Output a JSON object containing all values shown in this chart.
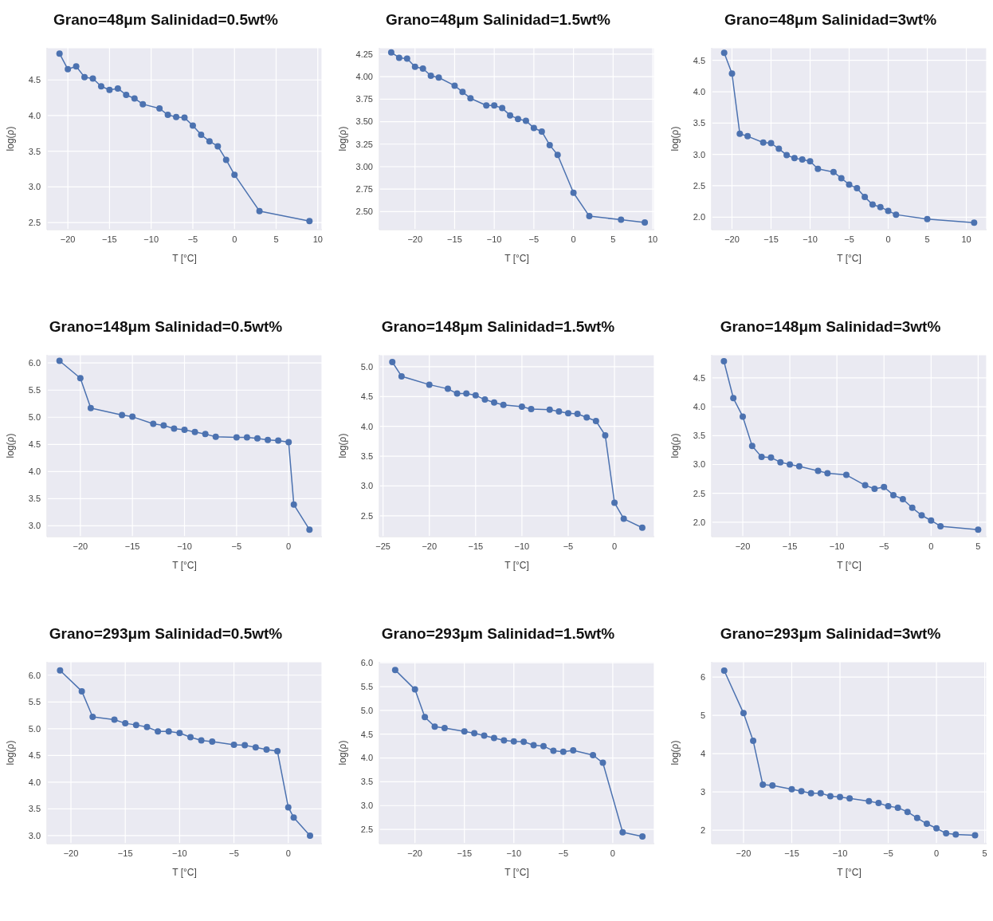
{
  "chart_data": [
    {
      "type": "line",
      "title": "Grano=48μm  Salinidad=0.5wt%",
      "xlabel": "T [°C]",
      "ylabel": "log(ρ)",
      "grid": true,
      "marker": "circle",
      "xlim": [
        -22.5,
        10.5
      ],
      "ylim": [
        2.4,
        4.95
      ],
      "xticks": [
        -20,
        -15,
        -10,
        -5,
        0,
        5,
        10
      ],
      "yticks": [
        2.5,
        {
          "value": 3,
          "label": "3.0"
        },
        3.5,
        {
          "value": 4,
          "label": "4.0"
        },
        4.5
      ],
      "x": [
        -21,
        -20,
        -19,
        -18,
        -17,
        -16,
        -15,
        -14,
        -13,
        -12,
        -11,
        -9,
        -8,
        -7,
        -6,
        -5,
        -4,
        -3,
        -2,
        -1,
        0,
        3,
        9
      ],
      "series": [
        {
          "color": "#4c72b0",
          "values": [
            4.87,
            4.65,
            4.69,
            4.54,
            4.52,
            4.41,
            4.36,
            4.38,
            4.29,
            4.24,
            4.16,
            4.1,
            4.01,
            3.98,
            3.97,
            3.86,
            3.73,
            3.64,
            3.57,
            3.38,
            3.17,
            2.66,
            2.52
          ]
        }
      ]
    },
    {
      "type": "line",
      "title": "Grano=48μm  Salinidad=1.5wt%",
      "xlabel": "T [°C]",
      "ylabel": "log(ρ)",
      "grid": true,
      "marker": "circle",
      "xlim": [
        -24.5,
        10.2
      ],
      "ylim": [
        2.3,
        4.32
      ],
      "xticks": [
        -20,
        -15,
        -10,
        -5,
        0,
        5,
        10
      ],
      "yticks": [
        {
          "value": 2.5,
          "label": "2.50"
        },
        2.75,
        {
          "value": 3,
          "label": "3.00"
        },
        3.25,
        {
          "value": 3.5,
          "label": "3.50"
        },
        3.75,
        {
          "value": 4,
          "label": "4.00"
        },
        4.25
      ],
      "x": [
        -23,
        -22,
        -21,
        -20,
        -19,
        -18,
        -17,
        -15,
        -14,
        -13,
        -11,
        -10,
        -9,
        -8,
        -7,
        -6,
        -5,
        -4,
        -3,
        -2,
        0,
        2,
        6,
        9
      ],
      "series": [
        {
          "color": "#4c72b0",
          "values": [
            4.27,
            4.21,
            4.2,
            4.11,
            4.09,
            4.01,
            3.99,
            3.9,
            3.83,
            3.76,
            3.68,
            3.68,
            3.65,
            3.57,
            3.53,
            3.51,
            3.43,
            3.39,
            3.24,
            3.13,
            2.71,
            2.45,
            2.41,
            2.38
          ]
        }
      ]
    },
    {
      "type": "line",
      "title": "Grano=48μm  Salinidad=3wt%",
      "xlabel": "T [°C]",
      "ylabel": "log(ρ)",
      "grid": true,
      "marker": "circle",
      "xlim": [
        -22.6,
        12.6
      ],
      "ylim": [
        1.8,
        4.7
      ],
      "xticks": [
        -20,
        -15,
        -10,
        -5,
        0,
        5,
        10
      ],
      "yticks": [
        {
          "value": 2,
          "label": "2.0"
        },
        2.5,
        {
          "value": 3,
          "label": "3.0"
        },
        3.5,
        {
          "value": 4,
          "label": "4.0"
        },
        4.5
      ],
      "x": [
        -21,
        -20,
        -19,
        -18,
        -16,
        -15,
        -14,
        -13,
        -12,
        -11,
        -10,
        -9,
        -7,
        -6,
        -5,
        -4,
        -3,
        -2,
        -1,
        0,
        1,
        5,
        11
      ],
      "series": [
        {
          "color": "#4c72b0",
          "values": [
            4.62,
            4.29,
            3.33,
            3.29,
            3.19,
            3.18,
            3.09,
            2.99,
            2.94,
            2.92,
            2.89,
            2.77,
            2.72,
            2.62,
            2.52,
            2.46,
            2.32,
            2.2,
            2.16,
            2.1,
            2.04,
            1.97,
            1.91
          ]
        }
      ]
    },
    {
      "type": "line",
      "title": "Grano=148μm  Salinidad=0.5wt%",
      "xlabel": "T [°C]",
      "ylabel": "log(ρ)",
      "grid": true,
      "marker": "circle",
      "xlim": [
        -23.2,
        3.2
      ],
      "ylim": [
        2.8,
        6.15
      ],
      "xticks": [
        -20,
        -15,
        -10,
        -5,
        0
      ],
      "yticks": [
        {
          "value": 3,
          "label": "3.0"
        },
        3.5,
        {
          "value": 4,
          "label": "4.0"
        },
        4.5,
        {
          "value": 5,
          "label": "5.0"
        },
        5.5,
        {
          "value": 6,
          "label": "6.0"
        }
      ],
      "x": [
        -22,
        -20,
        -19,
        -16,
        -15,
        -13,
        -12,
        -11,
        -10,
        -9,
        -8,
        -7,
        -5,
        -4,
        -3,
        -2,
        -1,
        0,
        0.5,
        2
      ],
      "series": [
        {
          "color": "#4c72b0",
          "values": [
            6.04,
            5.72,
            5.17,
            5.04,
            5.01,
            4.88,
            4.85,
            4.79,
            4.77,
            4.73,
            4.69,
            4.64,
            4.63,
            4.63,
            4.61,
            4.58,
            4.57,
            4.54,
            3.39,
            2.93
          ]
        }
      ]
    },
    {
      "type": "line",
      "title": "Grano=148μm  Salinidad=1.5wt%",
      "xlabel": "T [°C]",
      "ylabel": "log(ρ)",
      "grid": true,
      "marker": "circle",
      "xlim": [
        -25.4,
        4.3
      ],
      "ylim": [
        2.15,
        5.2
      ],
      "xticks": [
        -25,
        -20,
        -15,
        -10,
        -5,
        0
      ],
      "yticks": [
        2.5,
        {
          "value": 3,
          "label": "3.0"
        },
        3.5,
        {
          "value": 4,
          "label": "4.0"
        },
        4.5,
        {
          "value": 5,
          "label": "5.0"
        }
      ],
      "x": [
        -24,
        -23,
        -20,
        -18,
        -17,
        -16,
        -15,
        -14,
        -13,
        -12,
        -10,
        -9,
        -7,
        -6,
        -5,
        -4,
        -3,
        -2,
        -1,
        0,
        1,
        3
      ],
      "series": [
        {
          "color": "#4c72b0",
          "values": [
            5.08,
            4.84,
            4.7,
            4.63,
            4.55,
            4.55,
            4.52,
            4.45,
            4.4,
            4.36,
            4.33,
            4.29,
            4.28,
            4.25,
            4.22,
            4.21,
            4.15,
            4.09,
            3.85,
            2.72,
            2.45,
            2.3
          ]
        }
      ]
    },
    {
      "type": "line",
      "title": "Grano=148μm  Salinidad=3wt%",
      "xlabel": "T [°C]",
      "ylabel": "log(ρ)",
      "grid": true,
      "marker": "circle",
      "xlim": [
        -23.3,
        5.9
      ],
      "ylim": [
        1.75,
        4.9
      ],
      "xticks": [
        -20,
        -15,
        -10,
        -5,
        0,
        5
      ],
      "yticks": [
        {
          "value": 2,
          "label": "2.0"
        },
        2.5,
        {
          "value": 3,
          "label": "3.0"
        },
        3.5,
        {
          "value": 4,
          "label": "4.0"
        },
        4.5
      ],
      "x": [
        -22,
        -21,
        -20,
        -19,
        -18,
        -17,
        -16,
        -15,
        -14,
        -12,
        -11,
        -9,
        -7,
        -6,
        -5,
        -4,
        -3,
        -2,
        -1,
        0,
        1,
        5
      ],
      "series": [
        {
          "color": "#4c72b0",
          "values": [
            4.79,
            4.15,
            3.83,
            3.32,
            3.13,
            3.12,
            3.04,
            3.0,
            2.97,
            2.89,
            2.85,
            2.82,
            2.64,
            2.58,
            2.61,
            2.47,
            2.4,
            2.25,
            2.12,
            2.03,
            1.93,
            1.87
          ]
        }
      ]
    },
    {
      "type": "line",
      "title": "Grano=293μm  Salinidad=0.5wt%",
      "xlabel": "T [°C]",
      "ylabel": "log(ρ)",
      "grid": true,
      "marker": "circle",
      "xlim": [
        -22.2,
        3.1
      ],
      "ylim": [
        2.85,
        6.25
      ],
      "xticks": [
        -20,
        -15,
        -10,
        -5,
        0
      ],
      "yticks": [
        {
          "value": 3,
          "label": "3.0"
        },
        3.5,
        {
          "value": 4,
          "label": "4.0"
        },
        4.5,
        {
          "value": 5,
          "label": "5.0"
        },
        5.5,
        {
          "value": 6,
          "label": "6.0"
        }
      ],
      "x": [
        -21,
        -19,
        -18,
        -16,
        -15,
        -14,
        -13,
        -12,
        -11,
        -10,
        -9,
        -8,
        -7,
        -5,
        -4,
        -3,
        -2,
        -1,
        0,
        0.5,
        2
      ],
      "series": [
        {
          "color": "#4c72b0",
          "values": [
            6.09,
            5.7,
            5.22,
            5.17,
            5.1,
            5.07,
            5.03,
            4.95,
            4.95,
            4.92,
            4.84,
            4.78,
            4.76,
            4.7,
            4.69,
            4.65,
            4.61,
            4.58,
            3.53,
            3.34,
            3.0
          ]
        }
      ]
    },
    {
      "type": "line",
      "title": "Grano=293μm  Salinidad=1.5wt%",
      "xlabel": "T [°C]",
      "ylabel": "log(ρ)",
      "grid": true,
      "marker": "circle",
      "xlim": [
        -23.6,
        4.2
      ],
      "ylim": [
        2.2,
        6.02
      ],
      "xticks": [
        -20,
        -15,
        -10,
        -5,
        0
      ],
      "yticks": [
        2.5,
        {
          "value": 3,
          "label": "3.0"
        },
        3.5,
        {
          "value": 4,
          "label": "4.0"
        },
        4.5,
        {
          "value": 5,
          "label": "5.0"
        },
        5.5,
        {
          "value": 6,
          "label": "6.0"
        }
      ],
      "x": [
        -22,
        -20,
        -19,
        -18,
        -17,
        -15,
        -14,
        -13,
        -12,
        -11,
        -10,
        -9,
        -8,
        -7,
        -6,
        -5,
        -4,
        -2,
        -1,
        1,
        3
      ],
      "series": [
        {
          "color": "#4c72b0",
          "values": [
            5.85,
            5.44,
            4.86,
            4.66,
            4.63,
            4.56,
            4.52,
            4.47,
            4.42,
            4.37,
            4.35,
            4.34,
            4.27,
            4.25,
            4.15,
            4.13,
            4.16,
            4.06,
            3.9,
            2.44,
            2.35
          ]
        }
      ]
    },
    {
      "type": "line",
      "title": "Grano=293μm  Salinidad=3wt%",
      "xlabel": "T [°C]",
      "ylabel": "log(ρ)",
      "grid": true,
      "marker": "circle",
      "xlim": [
        -23.3,
        5.2
      ],
      "ylim": [
        1.65,
        6.4
      ],
      "xticks": [
        -20,
        -15,
        -10,
        -5,
        0,
        5
      ],
      "yticks": [
        2,
        3,
        4,
        5,
        6
      ],
      "x": [
        -22,
        -20,
        -19,
        -18,
        -17,
        -15,
        -14,
        -13,
        -12,
        -11,
        -10,
        -9,
        -7,
        -6,
        -5,
        -4,
        -3,
        -2,
        -1,
        0,
        1,
        2,
        4
      ],
      "series": [
        {
          "color": "#4c72b0",
          "values": [
            6.17,
            5.06,
            4.34,
            3.19,
            3.17,
            3.07,
            3.02,
            2.97,
            2.97,
            2.89,
            2.87,
            2.83,
            2.76,
            2.71,
            2.63,
            2.59,
            2.48,
            2.32,
            2.17,
            2.05,
            1.92,
            1.89,
            1.87
          ]
        }
      ]
    }
  ]
}
